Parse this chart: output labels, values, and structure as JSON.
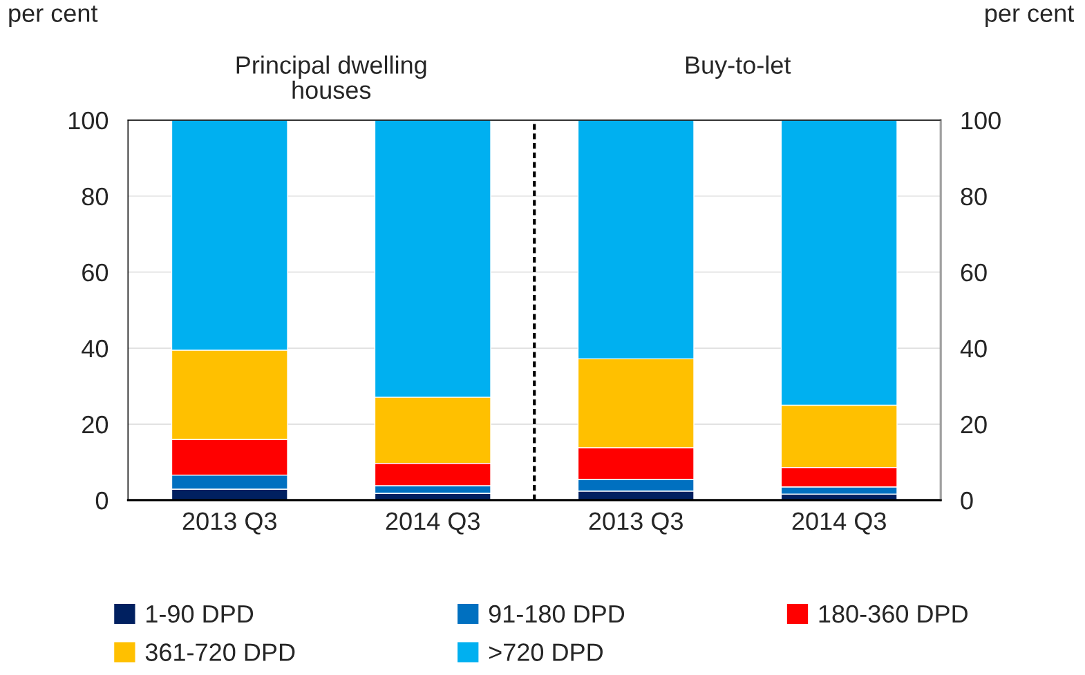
{
  "chart_data": {
    "type": "bar",
    "stacked": true,
    "categories": [
      "2013 Q3",
      "2014 Q3",
      "2013 Q3",
      "2014 Q3"
    ],
    "series": [
      {
        "name": "1-90 DPD",
        "color": "#002060",
        "values": [
          2.9,
          1.8,
          2.4,
          1.6
        ]
      },
      {
        "name": "91-180 DPD",
        "color": "#0070c0",
        "values": [
          3.7,
          2.0,
          3.1,
          1.9
        ]
      },
      {
        "name": "180-360 DPD",
        "color": "#ff0000",
        "values": [
          9.4,
          5.9,
          8.3,
          5.1
        ]
      },
      {
        "name": "361-720 DPD",
        "color": "#ffc000",
        "values": [
          23.5,
          17.4,
          23.4,
          16.4
        ]
      },
      {
        "name": ">720 DPD",
        "color": "#00b0f0",
        "values": [
          60.5,
          72.9,
          62.8,
          75.0
        ]
      }
    ],
    "ylabel": "per cent",
    "y2label": "per cent",
    "ylim": [
      0,
      100
    ],
    "yticks": [
      0,
      20,
      40,
      60,
      80,
      100
    ],
    "y2lim": [
      0,
      100
    ],
    "y2ticks": [
      0,
      20,
      40,
      60,
      80,
      100
    ],
    "annotations": [
      "Principal dwelling\nhouses",
      "Buy-to-let"
    ],
    "grid": "y",
    "legend": "bottom"
  }
}
